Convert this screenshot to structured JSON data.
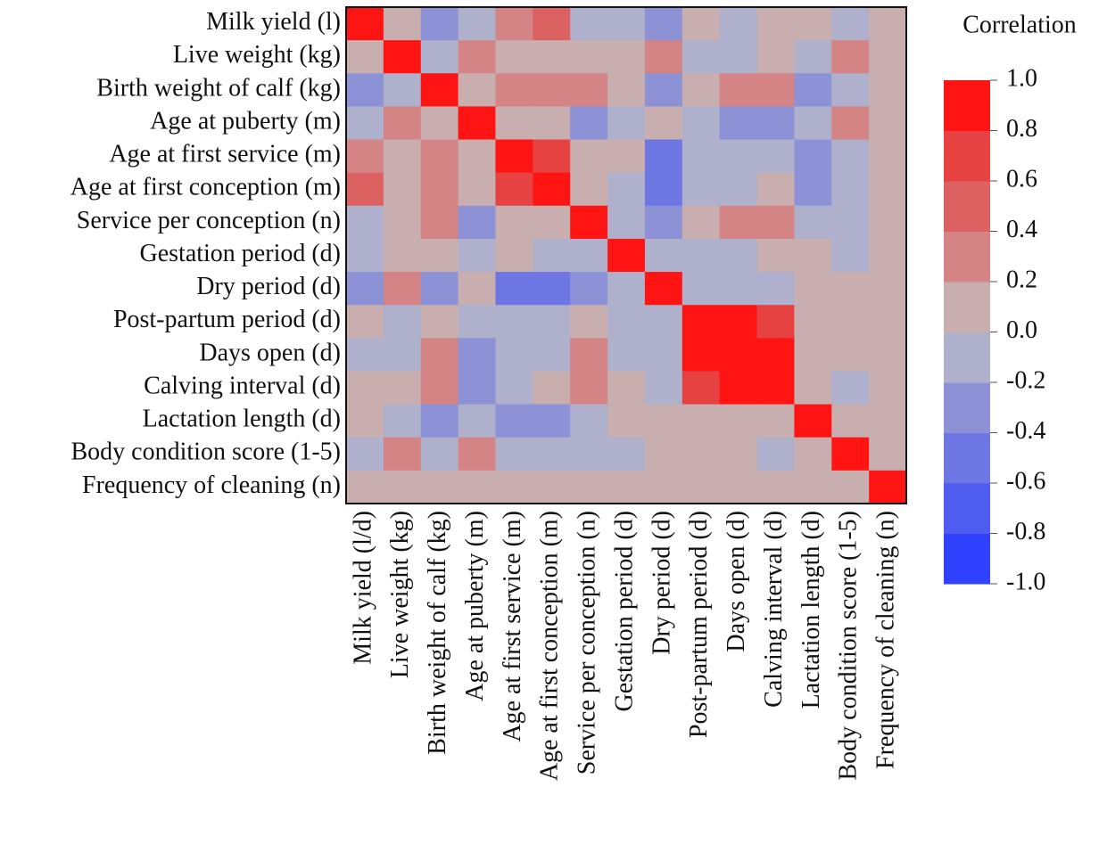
{
  "chart_data": {
    "type": "heatmap",
    "legend_title": "Correlation",
    "y_categories": [
      "Milk yield (l)",
      "Live weight (kg)",
      "Birth weight  of calf (kg)",
      "Age at puberty  (m)",
      "Age at first service (m)",
      "Age at first conception (m)",
      "Service per conception (n)",
      "Gestation period (d)",
      "Dry period (d)",
      "Post-partum period (d)",
      "Days open (d)",
      "Calving interval (d)",
      "Lactation length (d)",
      "Body condition score (1-5)",
      "Frequency of cleaning (n)"
    ],
    "x_categories": [
      "Milk yield (l/d)",
      "Live weight (kg)",
      "Birth weight  of calf (kg)",
      "Age at puberty  (m)",
      "Age at first service (m)",
      "Age at first conception (m)",
      "Service per conception (n)",
      "Gestation period (d)",
      "Dry period (d)",
      "Post-partum period (d)",
      "Days open (d)",
      "Calving interval (d)",
      "Lactation length (d)",
      "Body condition score (1-5)",
      "Frequency of cleaning (n)"
    ],
    "values": [
      [
        1,
        0.1,
        -0.3,
        -0.1,
        0.3,
        0.5,
        -0.1,
        -0.1,
        -0.3,
        0.1,
        -0.1,
        0.1,
        0.1,
        -0.1,
        0.1
      ],
      [
        0.1,
        1,
        -0.1,
        0.3,
        0.1,
        0.1,
        0.1,
        0.1,
        0.3,
        -0.1,
        -0.1,
        0.1,
        -0.1,
        0.3,
        0.1
      ],
      [
        -0.3,
        -0.1,
        1,
        0.1,
        0.3,
        0.3,
        0.3,
        0.1,
        -0.3,
        0.1,
        0.3,
        0.3,
        -0.3,
        -0.1,
        0.1
      ],
      [
        -0.1,
        0.3,
        0.1,
        1,
        0.1,
        0.1,
        -0.3,
        -0.1,
        0.1,
        -0.1,
        -0.3,
        -0.3,
        -0.1,
        0.3,
        0.1
      ],
      [
        0.3,
        0.1,
        0.3,
        0.1,
        1,
        0.7,
        0.1,
        0.1,
        -0.5,
        -0.1,
        -0.1,
        -0.1,
        -0.3,
        -0.1,
        0.1
      ],
      [
        0.5,
        0.1,
        0.3,
        0.1,
        0.7,
        1,
        0.1,
        -0.1,
        -0.5,
        -0.1,
        -0.1,
        0.1,
        -0.3,
        -0.1,
        0.1
      ],
      [
        -0.1,
        0.1,
        0.3,
        -0.3,
        0.1,
        0.1,
        1,
        -0.1,
        -0.3,
        0.1,
        0.3,
        0.3,
        -0.1,
        -0.1,
        0.1
      ],
      [
        -0.1,
        0.1,
        0.1,
        -0.1,
        0.1,
        -0.1,
        -0.1,
        1,
        -0.1,
        -0.1,
        -0.1,
        0.1,
        0.1,
        -0.1,
        0.1
      ],
      [
        -0.3,
        0.3,
        -0.3,
        0.1,
        -0.5,
        -0.5,
        -0.3,
        -0.1,
        1,
        -0.1,
        -0.1,
        -0.1,
        0.1,
        0.1,
        0.1
      ],
      [
        0.1,
        -0.1,
        0.1,
        -0.1,
        -0.1,
        -0.1,
        0.1,
        -0.1,
        -0.1,
        1,
        0.9,
        0.7,
        0.1,
        0.1,
        0.1
      ],
      [
        -0.1,
        -0.1,
        0.3,
        -0.3,
        -0.1,
        -0.1,
        0.3,
        -0.1,
        -0.1,
        0.9,
        1,
        0.9,
        0.1,
        0.1,
        0.1
      ],
      [
        0.1,
        0.1,
        0.3,
        -0.3,
        -0.1,
        0.1,
        0.3,
        0.1,
        -0.1,
        0.7,
        0.9,
        1,
        0.1,
        -0.1,
        0.1
      ],
      [
        0.1,
        -0.1,
        -0.3,
        -0.1,
        -0.3,
        -0.3,
        -0.1,
        0.1,
        0.1,
        0.1,
        0.1,
        0.1,
        1,
        0.1,
        0.1
      ],
      [
        -0.1,
        0.3,
        -0.1,
        0.3,
        -0.1,
        -0.1,
        -0.1,
        -0.1,
        0.1,
        0.1,
        0.1,
        -0.1,
        0.1,
        1,
        0.1
      ],
      [
        0.1,
        0.1,
        0.1,
        0.1,
        0.1,
        0.1,
        0.1,
        0.1,
        0.1,
        0.1,
        0.1,
        0.1,
        0.1,
        0.1,
        1
      ]
    ],
    "zlim": [
      -1,
      1
    ],
    "colors": [
      "#3142ff",
      "#4f5cf0",
      "#6d76e2",
      "#8d92d6",
      "#afb0cc",
      "#c8aeae",
      "#d48484",
      "#dc6262",
      "#e64242",
      "#ff1414"
    ],
    "zticks": [
      {
        "value": 1,
        "label": "1.0"
      },
      0.8,
      0.6,
      0.4,
      0.2,
      {
        "value": 0,
        "label": "0.0"
      },
      -0.2,
      -0.4,
      -0.6,
      -0.8,
      {
        "value": -1,
        "label": "-1.0"
      }
    ]
  }
}
